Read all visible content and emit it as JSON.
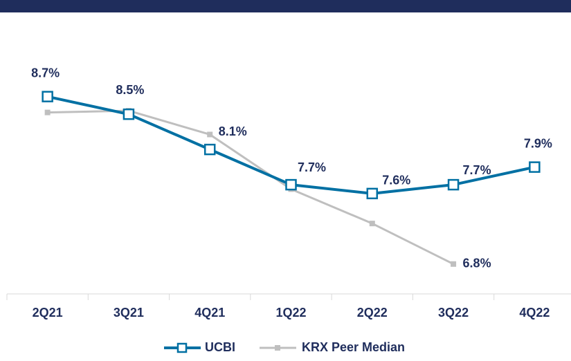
{
  "chart_data": {
    "type": "line",
    "categories": [
      "2Q21",
      "3Q21",
      "4Q21",
      "1Q22",
      "2Q22",
      "3Q22",
      "4Q22"
    ],
    "ylim": [
      6.5,
      9.6
    ],
    "legend": "bottom",
    "series": [
      {
        "name": "UCBI",
        "color": "#0070a3",
        "values": [
          8.7,
          8.5,
          8.1,
          7.7,
          7.6,
          7.7,
          7.9
        ],
        "value_labels": [
          "8.7%",
          "8.5%",
          "8.1%",
          "7.7%",
          "7.6%",
          "7.7%",
          "7.9%"
        ]
      },
      {
        "name": "KRX Peer Median",
        "color": "#bfbfbf",
        "values": [
          8.52,
          8.54,
          8.27,
          7.65,
          7.26,
          6.8,
          null
        ],
        "value_labels": [
          null,
          null,
          null,
          null,
          null,
          "6.8%",
          null
        ]
      }
    ]
  }
}
